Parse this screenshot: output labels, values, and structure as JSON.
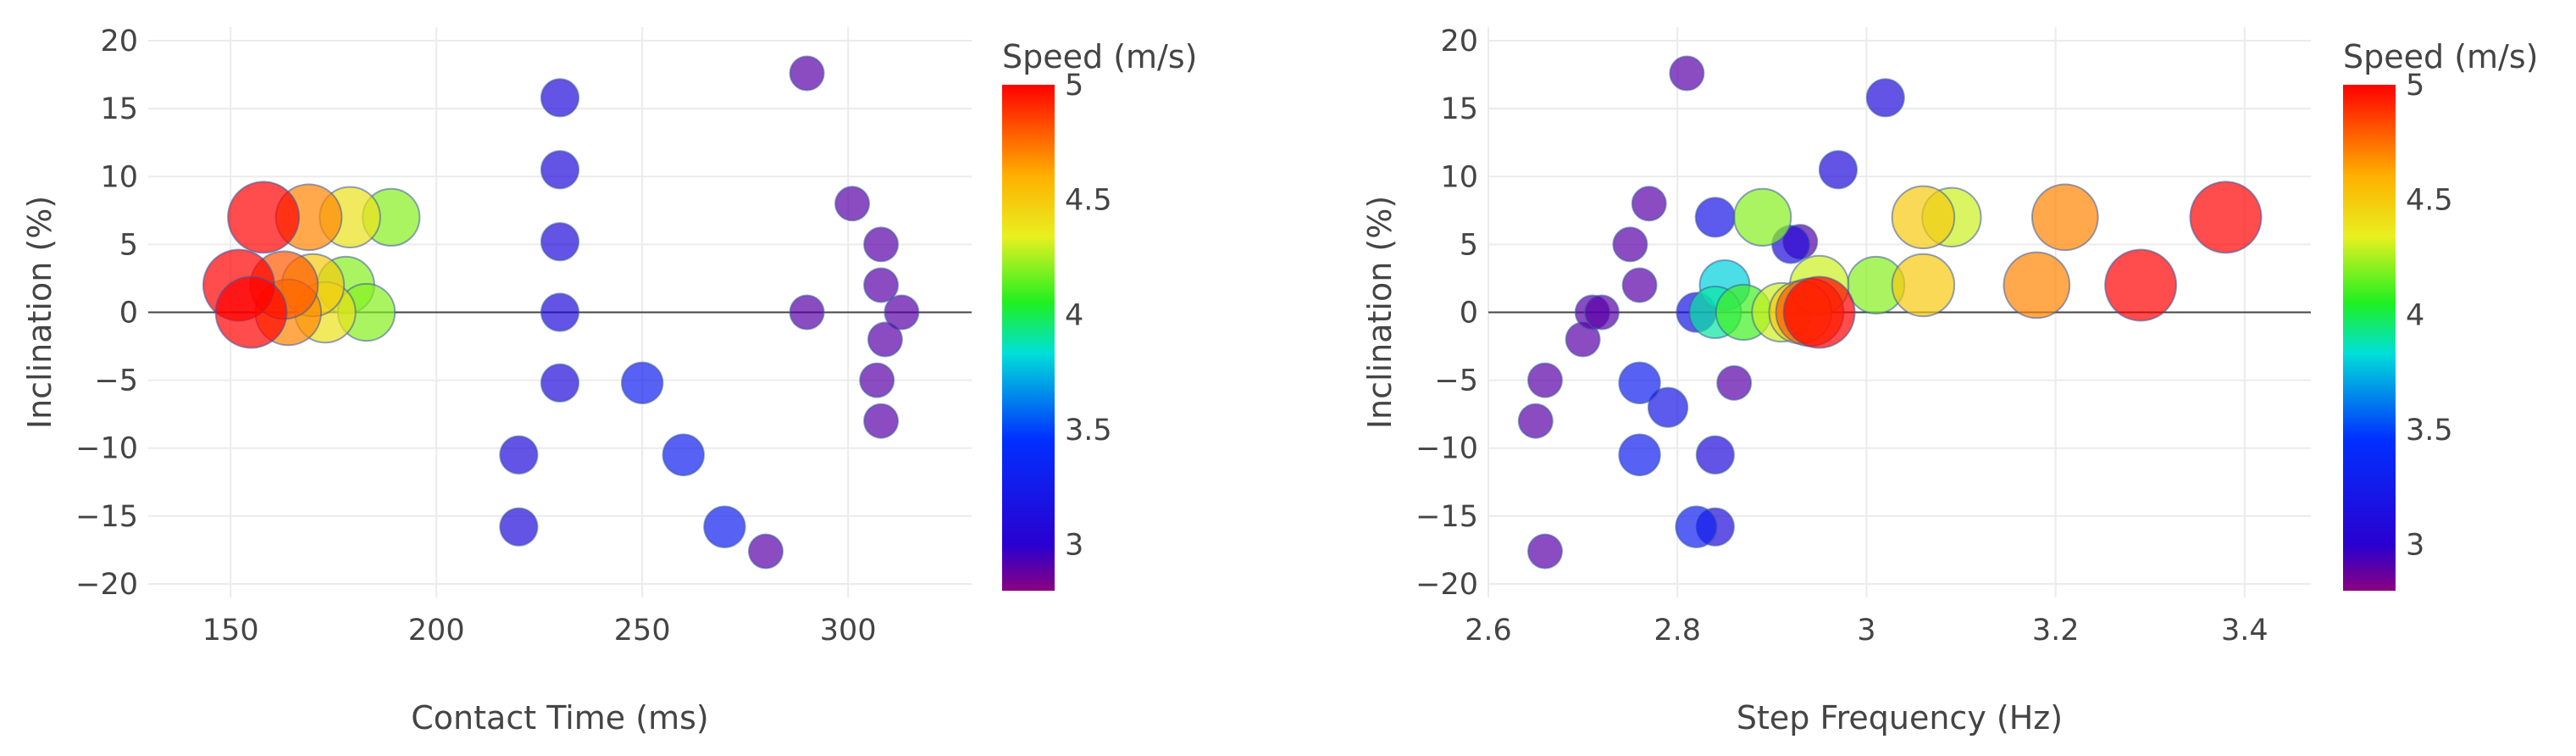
{
  "chart_data": [
    {
      "type": "scatter",
      "xlabel": "Contact Time (ms)",
      "ylabel": "Inclination (%)",
      "xlim": [
        130,
        330
      ],
      "ylim": [
        -21,
        21
      ],
      "xticks": [
        150,
        200,
        250,
        300
      ],
      "yticks": [
        -20,
        -15,
        -10,
        -5,
        0,
        5,
        10,
        15,
        20
      ],
      "grid": true,
      "colorbar": {
        "title": "Speed (m/s)",
        "range": [
          2.8,
          5
        ],
        "ticks": [
          3,
          3.5,
          4,
          4.5,
          5
        ],
        "colorscale": "rainbow"
      },
      "points": [
        {
          "x": 158,
          "y": 7,
          "speed": 5
        },
        {
          "x": 169,
          "y": 7,
          "speed": 4.7
        },
        {
          "x": 179,
          "y": 7,
          "speed": 4.4
        },
        {
          "x": 189,
          "y": 7,
          "speed": 4.2
        },
        {
          "x": 152,
          "y": 2,
          "speed": 5
        },
        {
          "x": 163,
          "y": 2,
          "speed": 4.8
        },
        {
          "x": 170,
          "y": 2,
          "speed": 4.5
        },
        {
          "x": 178,
          "y": 2,
          "speed": 4.2
        },
        {
          "x": 155,
          "y": 0,
          "speed": 5
        },
        {
          "x": 164,
          "y": 0,
          "speed": 4.7
        },
        {
          "x": 173,
          "y": 0,
          "speed": 4.4
        },
        {
          "x": 183,
          "y": 0,
          "speed": 4.2
        },
        {
          "x": 230,
          "y": 15.8,
          "speed": 3.1
        },
        {
          "x": 230,
          "y": 10.5,
          "speed": 3.1
        },
        {
          "x": 230,
          "y": 5.2,
          "speed": 3.1
        },
        {
          "x": 230,
          "y": 0,
          "speed": 3.1
        },
        {
          "x": 230,
          "y": -5.2,
          "speed": 3.1
        },
        {
          "x": 220,
          "y": -10.5,
          "speed": 3.1
        },
        {
          "x": 220,
          "y": -15.8,
          "speed": 3.1
        },
        {
          "x": 250,
          "y": -5.2,
          "speed": 3.3
        },
        {
          "x": 260,
          "y": -10.5,
          "speed": 3.3
        },
        {
          "x": 270,
          "y": -15.8,
          "speed": 3.3
        },
        {
          "x": 280,
          "y": -17.6,
          "speed": 2.9
        },
        {
          "x": 290,
          "y": 17.6,
          "speed": 2.9
        },
        {
          "x": 290,
          "y": 0,
          "speed": 2.9
        },
        {
          "x": 301,
          "y": 8,
          "speed": 2.9
        },
        {
          "x": 308,
          "y": 5,
          "speed": 2.9
        },
        {
          "x": 308,
          "y": 2,
          "speed": 2.9
        },
        {
          "x": 313,
          "y": 0,
          "speed": 2.9
        },
        {
          "x": 309,
          "y": -2,
          "speed": 2.9
        },
        {
          "x": 307,
          "y": -5,
          "speed": 2.9
        },
        {
          "x": 308,
          "y": -8,
          "speed": 2.9
        }
      ]
    },
    {
      "type": "scatter",
      "xlabel": "Step Frequency (Hz)",
      "ylabel": "Inclination (%)",
      "xlim": [
        2.6,
        3.47
      ],
      "ylim": [
        -21,
        21
      ],
      "xticks": [
        2.6,
        2.8,
        3,
        3.2,
        3.4
      ],
      "yticks": [
        -20,
        -15,
        -10,
        -5,
        0,
        5,
        10,
        15,
        20
      ],
      "grid": true,
      "colorbar": {
        "title": "Speed (m/s)",
        "range": [
          2.8,
          5
        ],
        "ticks": [
          3,
          3.5,
          4,
          4.5,
          5
        ],
        "colorscale": "rainbow"
      },
      "points": [
        {
          "x": 2.65,
          "y": -8,
          "speed": 2.9
        },
        {
          "x": 2.66,
          "y": -5,
          "speed": 2.9
        },
        {
          "x": 2.7,
          "y": -2,
          "speed": 2.9
        },
        {
          "x": 2.71,
          "y": 0,
          "speed": 2.9
        },
        {
          "x": 2.72,
          "y": 0,
          "speed": 2.9
        },
        {
          "x": 2.75,
          "y": 5,
          "speed": 2.9
        },
        {
          "x": 2.76,
          "y": 2,
          "speed": 2.9
        },
        {
          "x": 2.77,
          "y": 8,
          "speed": 2.9
        },
        {
          "x": 2.81,
          "y": 17.6,
          "speed": 2.9
        },
        {
          "x": 2.66,
          "y": -17.6,
          "speed": 2.9
        },
        {
          "x": 2.86,
          "y": -5.2,
          "speed": 2.9
        },
        {
          "x": 2.76,
          "y": -5.2,
          "speed": 3.3
        },
        {
          "x": 2.76,
          "y": -10.5,
          "speed": 3.3
        },
        {
          "x": 2.79,
          "y": -7,
          "speed": 3.2
        },
        {
          "x": 2.82,
          "y": -15.8,
          "speed": 3.3
        },
        {
          "x": 2.84,
          "y": -15.8,
          "speed": 3.1
        },
        {
          "x": 2.84,
          "y": -10.5,
          "speed": 3.1
        },
        {
          "x": 2.82,
          "y": 0,
          "speed": 3.2
        },
        {
          "x": 2.84,
          "y": 7,
          "speed": 3.2
        },
        {
          "x": 2.92,
          "y": 5,
          "speed": 3.1
        },
        {
          "x": 2.93,
          "y": 5.2,
          "speed": 2.9
        },
        {
          "x": 2.97,
          "y": 10.5,
          "speed": 3.1
        },
        {
          "x": 3.02,
          "y": 15.8,
          "speed": 3.1
        },
        {
          "x": 2.85,
          "y": 2,
          "speed": 3.8
        },
        {
          "x": 2.84,
          "y": 0,
          "speed": 3.9
        },
        {
          "x": 2.87,
          "y": 0,
          "speed": 4.1
        },
        {
          "x": 2.89,
          "y": 7,
          "speed": 4.2
        },
        {
          "x": 2.91,
          "y": 0,
          "speed": 4.3
        },
        {
          "x": 2.93,
          "y": 0,
          "speed": 4.5
        },
        {
          "x": 2.95,
          "y": 2,
          "speed": 4.3
        },
        {
          "x": 2.94,
          "y": 0,
          "speed": 4.8
        },
        {
          "x": 2.95,
          "y": 0,
          "speed": 5
        },
        {
          "x": 3.01,
          "y": 2,
          "speed": 4.2
        },
        {
          "x": 3.06,
          "y": 2,
          "speed": 4.5
        },
        {
          "x": 3.06,
          "y": 7,
          "speed": 4.5
        },
        {
          "x": 3.09,
          "y": 7,
          "speed": 4.3
        },
        {
          "x": 3.18,
          "y": 2,
          "speed": 4.7
        },
        {
          "x": 3.21,
          "y": 7,
          "speed": 4.7
        },
        {
          "x": 3.29,
          "y": 2,
          "speed": 5
        },
        {
          "x": 3.38,
          "y": 7,
          "speed": 5
        }
      ]
    }
  ]
}
